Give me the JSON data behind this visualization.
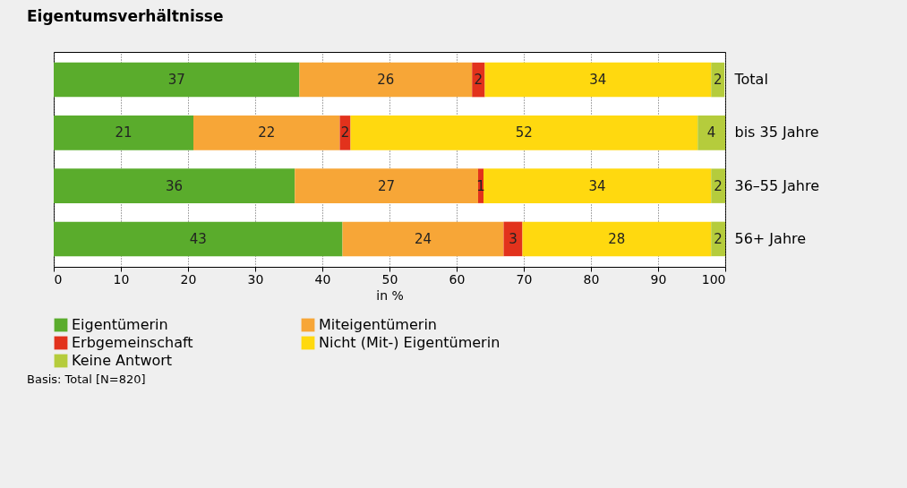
{
  "chart_data": {
    "type": "bar",
    "orientation": "horizontal",
    "stacked": true,
    "title": "Eigentumsverhältnisse",
    "xlabel": "in %",
    "categories": [
      "Total",
      "bis 35 Jahre",
      "36–55 Jahre",
      "56+ Jahre"
    ],
    "series": [
      {
        "name": "Eigentümerin",
        "color": "#5aac2c",
        "values": [
          36.6,
          20.8,
          35.9,
          43.0
        ],
        "value_labels": [
          "37",
          "21",
          "36",
          "43"
        ]
      },
      {
        "name": "Miteigentümerin",
        "color": "#f7a637",
        "values": [
          25.7,
          21.8,
          27.3,
          24.0
        ],
        "value_labels": [
          "26",
          "22",
          "27",
          "24"
        ]
      },
      {
        "name": "Erbgemeinschaft",
        "color": "#e2321c",
        "values": [
          1.9,
          1.6,
          0.8,
          2.8
        ],
        "value_labels": [
          "2",
          "2",
          "1",
          "3"
        ]
      },
      {
        "name": "Nicht (Mit-) Eigentümerin",
        "color": "#ffd90f",
        "values": [
          33.7,
          51.7,
          33.9,
          28.1
        ],
        "value_labels": [
          "34",
          "52",
          "34",
          "28"
        ]
      },
      {
        "name": "Keine Antwort",
        "color": "#b5cc3c",
        "values": [
          2.0,
          4.1,
          2.1,
          2.1
        ],
        "value_labels": [
          "2",
          "4",
          "2",
          "2"
        ]
      }
    ],
    "xlim": [
      0,
      100
    ],
    "xticks": [
      0,
      10,
      20,
      30,
      40,
      50,
      60,
      70,
      80,
      90,
      100
    ],
    "grid": "x",
    "legend": "bottom",
    "annotations": [
      "Basis: Total [N=820]"
    ]
  }
}
